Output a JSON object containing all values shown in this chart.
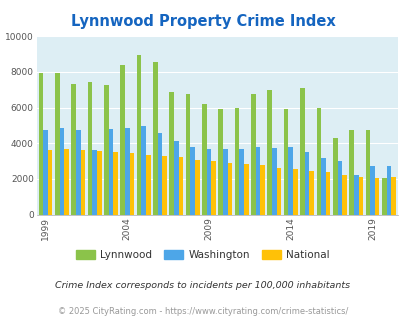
{
  "title": "Lynnwood Property Crime Index",
  "title_color": "#1565c0",
  "bg_color": "#ddeef4",
  "years": [
    1999,
    2000,
    2001,
    2002,
    2003,
    2004,
    2005,
    2006,
    2007,
    2008,
    2009,
    2010,
    2011,
    2012,
    2013,
    2014,
    2015,
    2016,
    2017,
    2018,
    2019,
    2020
  ],
  "lynnwood": [
    7950,
    7950,
    7300,
    7450,
    7250,
    8400,
    8950,
    8550,
    6850,
    6750,
    6200,
    5900,
    6000,
    6750,
    7000,
    5900,
    7100,
    6000,
    4300,
    4750,
    4750,
    2050
  ],
  "washington": [
    4750,
    4850,
    4750,
    3600,
    4800,
    4850,
    4950,
    4550,
    4100,
    3800,
    3700,
    3650,
    3700,
    3800,
    3750,
    3800,
    3500,
    3150,
    3000,
    2200,
    2700,
    2700
  ],
  "national": [
    3600,
    3700,
    3600,
    3550,
    3500,
    3450,
    3350,
    3300,
    3200,
    3050,
    3000,
    2900,
    2850,
    2750,
    2600,
    2550,
    2450,
    2400,
    2200,
    2100,
    2050,
    2100
  ],
  "lynnwood_color": "#8bc34a",
  "washington_color": "#4da6e8",
  "national_color": "#ffc107",
  "ylim": [
    0,
    10000
  ],
  "yticks": [
    0,
    2000,
    4000,
    6000,
    8000,
    10000
  ],
  "xlabel_ticks": [
    1999,
    2004,
    2009,
    2014,
    2019
  ],
  "note": "Crime Index corresponds to incidents per 100,000 inhabitants",
  "footer": "© 2025 CityRating.com - https://www.cityrating.com/crime-statistics/",
  "note_color": "#333333",
  "footer_color": "#999999"
}
